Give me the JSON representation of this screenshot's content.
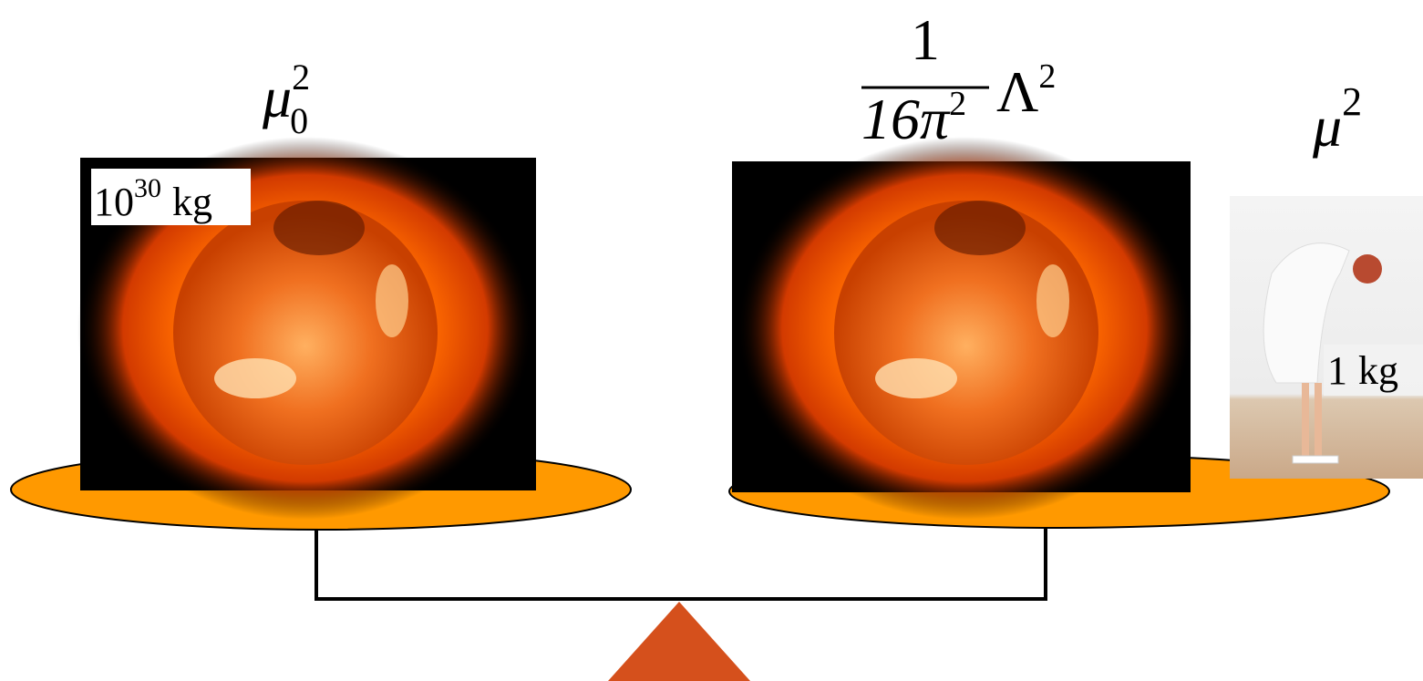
{
  "labels": {
    "left": {
      "base": "μ",
      "sub": "0",
      "sup": "2"
    },
    "middle": {
      "numerator": "1",
      "denominator": "16π",
      "denominator_sup": "2",
      "factor": "Λ",
      "factor_sup": "2"
    },
    "right": {
      "base": "μ",
      "sup": "2"
    }
  },
  "weights": {
    "left": {
      "base": "10",
      "sup": "30",
      "unit": "kg"
    },
    "right": {
      "value": "1",
      "unit": "kg"
    }
  }
}
